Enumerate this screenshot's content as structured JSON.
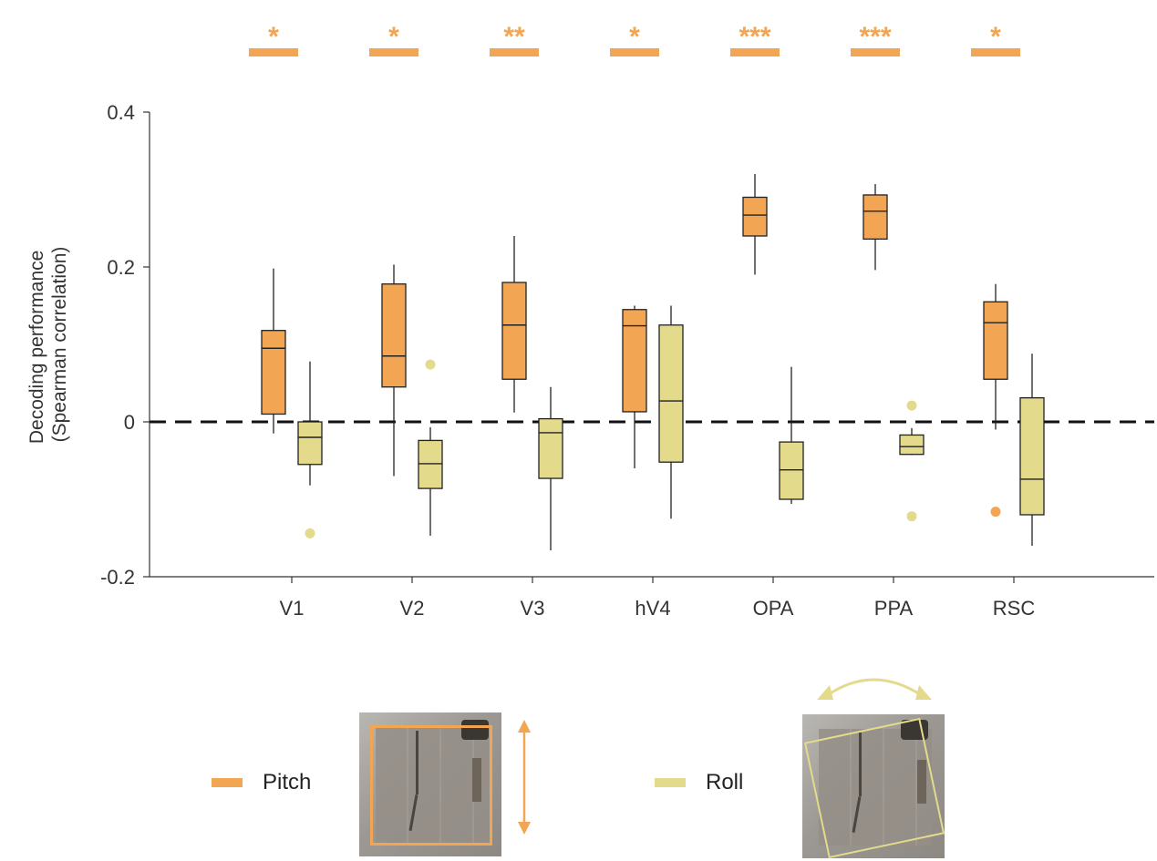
{
  "chart_data": {
    "type": "box",
    "ylabel_line1": "Decoding performance",
    "ylabel_line2": "(Spearman correlation)",
    "ylim": [
      -0.2,
      0.4
    ],
    "yticks": [
      -0.2,
      0,
      0.2,
      0.4
    ],
    "ytick_labels": [
      "-0.2",
      "0",
      "0.2",
      "0.4"
    ],
    "reference_line": 0,
    "categories": [
      "V1",
      "V2",
      "V3",
      "hV4",
      "OPA",
      "PPA",
      "RSC"
    ],
    "significance": [
      "*",
      "*",
      "**",
      "*",
      "***",
      "***",
      "*"
    ],
    "series": [
      {
        "name": "Pitch",
        "color": "#F2A552",
        "boxes": [
          {
            "whisker_low": -0.015,
            "q1": 0.01,
            "median": 0.095,
            "q3": 0.118,
            "whisker_high": 0.198,
            "outliers": []
          },
          {
            "whisker_low": -0.07,
            "q1": 0.045,
            "median": 0.085,
            "q3": 0.178,
            "whisker_high": 0.203,
            "outliers": []
          },
          {
            "whisker_low": 0.012,
            "q1": 0.055,
            "median": 0.125,
            "q3": 0.18,
            "whisker_high": 0.24,
            "outliers": []
          },
          {
            "whisker_low": -0.06,
            "q1": 0.013,
            "median": 0.124,
            "q3": 0.145,
            "whisker_high": 0.15,
            "outliers": []
          },
          {
            "whisker_low": 0.19,
            "q1": 0.24,
            "median": 0.267,
            "q3": 0.29,
            "whisker_high": 0.32,
            "outliers": []
          },
          {
            "whisker_low": 0.196,
            "q1": 0.236,
            "median": 0.272,
            "q3": 0.293,
            "whisker_high": 0.307,
            "outliers": []
          },
          {
            "whisker_low": -0.01,
            "q1": 0.055,
            "median": 0.128,
            "q3": 0.155,
            "whisker_high": 0.178,
            "outliers": [
              -0.116
            ]
          }
        ]
      },
      {
        "name": "Roll",
        "color": "#E3DA8C",
        "boxes": [
          {
            "whisker_low": -0.082,
            "q1": -0.055,
            "median": -0.02,
            "q3": 0.0,
            "whisker_high": 0.078,
            "outliers": [
              -0.144
            ]
          },
          {
            "whisker_low": -0.147,
            "q1": -0.086,
            "median": -0.054,
            "q3": -0.024,
            "whisker_high": -0.007,
            "outliers": [
              0.074
            ]
          },
          {
            "whisker_low": -0.166,
            "q1": -0.073,
            "median": -0.014,
            "q3": 0.004,
            "whisker_high": 0.045,
            "outliers": []
          },
          {
            "whisker_low": -0.125,
            "q1": -0.052,
            "median": 0.027,
            "q3": 0.125,
            "whisker_high": 0.15,
            "outliers": []
          },
          {
            "whisker_low": -0.106,
            "q1": -0.1,
            "median": -0.062,
            "q3": -0.026,
            "whisker_high": 0.071,
            "outliers": []
          },
          {
            "whisker_low": -0.043,
            "q1": -0.042,
            "median": -0.032,
            "q3": -0.017,
            "whisker_high": -0.008,
            "outliers": [
              0.021,
              -0.122
            ]
          },
          {
            "whisker_low": -0.16,
            "q1": -0.12,
            "median": -0.074,
            "q3": 0.031,
            "whisker_high": 0.088,
            "outliers": []
          }
        ]
      }
    ]
  },
  "legend": {
    "pitch_label": "Pitch",
    "roll_label": "Roll",
    "pitch_color": "#F2A552",
    "roll_color": "#E3DA8C",
    "pitch_icon": "vertical-double-arrow-icon",
    "roll_icon": "curved-double-arrow-icon"
  }
}
